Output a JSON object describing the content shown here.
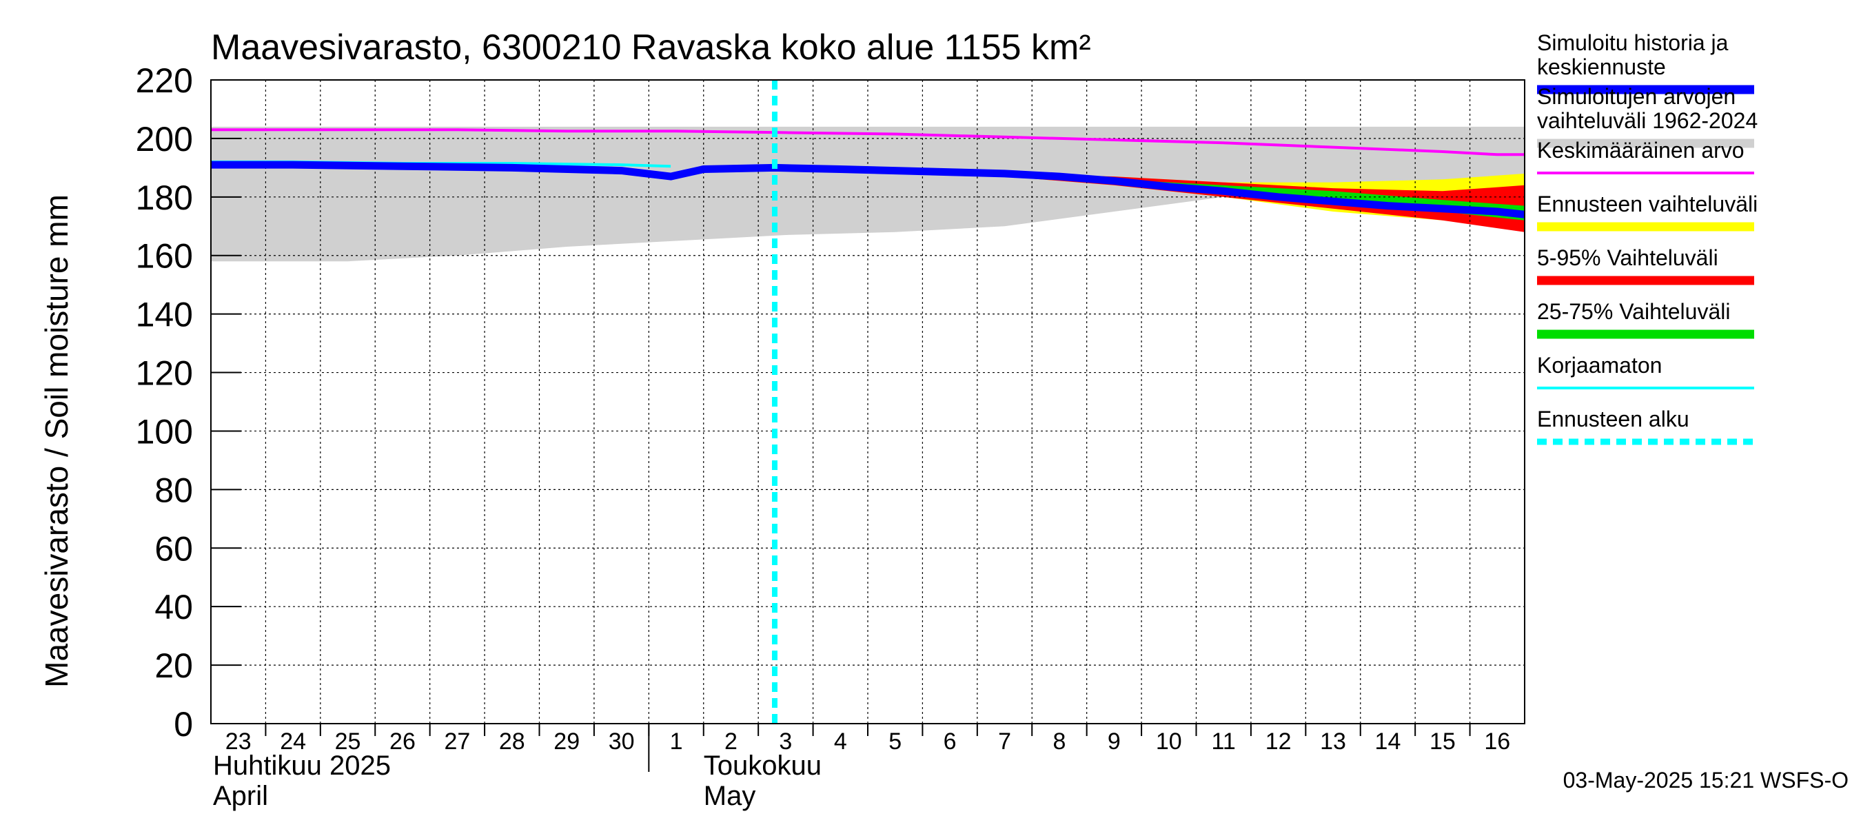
{
  "chart_data": {
    "type": "area",
    "title": "Maavesivarasto, 6300210 Ravaska koko alue 1155 km²",
    "ylabel": "Maavesivarasto / Soil moisture   mm",
    "ylim": [
      0,
      220
    ],
    "yticks": [
      0,
      20,
      40,
      60,
      80,
      100,
      120,
      140,
      160,
      180,
      200,
      220
    ],
    "grid": true,
    "x_day_range": [
      -0.5,
      23.5
    ],
    "x_ticks": [
      {
        "x": 0,
        "label": "23"
      },
      {
        "x": 1,
        "label": "24"
      },
      {
        "x": 2,
        "label": "25"
      },
      {
        "x": 3,
        "label": "26"
      },
      {
        "x": 4,
        "label": "27"
      },
      {
        "x": 5,
        "label": "28"
      },
      {
        "x": 6,
        "label": "29"
      },
      {
        "x": 7,
        "label": "30"
      },
      {
        "x": 8,
        "label": "1"
      },
      {
        "x": 9,
        "label": "2"
      },
      {
        "x": 10,
        "label": "3"
      },
      {
        "x": 11,
        "label": "4"
      },
      {
        "x": 12,
        "label": "5"
      },
      {
        "x": 13,
        "label": "6"
      },
      {
        "x": 14,
        "label": "7"
      },
      {
        "x": 15,
        "label": "8"
      },
      {
        "x": 16,
        "label": "9"
      },
      {
        "x": 17,
        "label": "10"
      },
      {
        "x": 18,
        "label": "11"
      },
      {
        "x": 19,
        "label": "12"
      },
      {
        "x": 20,
        "label": "13"
      },
      {
        "x": 21,
        "label": "14"
      },
      {
        "x": 22,
        "label": "15"
      },
      {
        "x": 23,
        "label": "16"
      }
    ],
    "months": [
      {
        "x": -0.5,
        "line1": "Huhtikuu  2025",
        "line2": "April"
      },
      {
        "x": 8.5,
        "line1": "Toukokuu",
        "line2": "May"
      }
    ],
    "month_divider_x": 7.5,
    "forecast_start_x": 9.8,
    "series": [
      {
        "name": "Simuloitujen arvojen vaihteluväli 1962-2024",
        "kind": "band",
        "color": "#d0d0d0",
        "x": [
          -0.5,
          2,
          4,
          6,
          8,
          10,
          12,
          14,
          16,
          18,
          20,
          22,
          23.5
        ],
        "low": [
          158,
          158,
          160,
          163,
          165,
          167,
          168,
          170,
          175,
          180,
          181,
          181,
          180
        ],
        "high": [
          204,
          204,
          204,
          204,
          204,
          204,
          204,
          204,
          204,
          204,
          204,
          204,
          204
        ]
      },
      {
        "name": "Ennusteen vaihteluväli",
        "kind": "band",
        "color": "#ffff00",
        "x": [
          9.8,
          12,
          14,
          16,
          18,
          20,
          22,
          23.5
        ],
        "low": [
          190,
          189,
          187,
          184,
          180,
          175,
          172,
          169
        ],
        "high": [
          190,
          189,
          188,
          187,
          185,
          185,
          186,
          188
        ]
      },
      {
        "name": "5-95% Vaihteluväli",
        "kind": "band",
        "color": "#ff0000",
        "x": [
          9.8,
          12,
          14,
          16,
          18,
          20,
          22,
          23.5
        ],
        "low": [
          190,
          189,
          187,
          184,
          180,
          176,
          172,
          168
        ],
        "high": [
          190,
          189,
          188,
          187,
          185,
          183,
          182,
          184
        ]
      },
      {
        "name": "25-75% Vaihteluväli",
        "kind": "band",
        "color": "#00dd00",
        "x": [
          9.8,
          12,
          14,
          16,
          18,
          20,
          22,
          23.5
        ],
        "low": [
          190,
          189,
          187,
          185,
          182,
          179,
          175,
          172
        ],
        "high": [
          190,
          189,
          188,
          186,
          184,
          182,
          179,
          177
        ]
      },
      {
        "name": "Keskimääräinen arvo",
        "kind": "line",
        "color": "#ff00ff",
        "width": 4,
        "x": [
          -0.5,
          2,
          4,
          6,
          8,
          10,
          12,
          14,
          16,
          18,
          20,
          22,
          23,
          23.5
        ],
        "y": [
          203,
          203,
          203,
          202.5,
          202.5,
          202,
          201.5,
          200.5,
          199.5,
          198.5,
          197,
          195.5,
          194.5,
          194.5
        ]
      },
      {
        "name": "Korjaamaton",
        "kind": "line",
        "color": "#00ffff",
        "width": 4,
        "x": [
          -0.5,
          1,
          3,
          5,
          7,
          7.9
        ],
        "y": [
          192,
          192,
          191.5,
          191.5,
          191,
          190.5
        ]
      },
      {
        "name": "Simuloitu historia ja keskiennuste",
        "kind": "line",
        "color": "#0000ff",
        "width": 11,
        "x": [
          -0.5,
          1,
          3,
          5,
          7,
          7.9,
          8.5,
          9.8,
          11,
          12,
          13,
          14,
          15,
          16,
          17,
          18,
          19,
          20,
          21,
          22,
          23,
          23.5
        ],
        "y": [
          191,
          191,
          190.5,
          190,
          189,
          187,
          189.5,
          190,
          189.5,
          189,
          188.5,
          188,
          187,
          185.5,
          183.5,
          182,
          180,
          178.5,
          177,
          176,
          175,
          174
        ]
      }
    ]
  },
  "legend": [
    {
      "line1": "Simuloitu historia ja",
      "line2": "keskiennuste",
      "color": "#0000ff",
      "style": "thick"
    },
    {
      "line1": "Simuloitujen arvojen",
      "line2": "vaihteluväli 1962-2024",
      "color": "#d0d0d0",
      "style": "thick"
    },
    {
      "line1": "Keskimääräinen arvo",
      "line2": "",
      "color": "#ff00ff",
      "style": "thin"
    },
    {
      "line1": "Ennusteen vaihteluväli",
      "line2": "",
      "color": "#ffff00",
      "style": "thick"
    },
    {
      "line1": "5-95% Vaihteluväli",
      "line2": "",
      "color": "#ff0000",
      "style": "thick"
    },
    {
      "line1": "25-75% Vaihteluväli",
      "line2": "",
      "color": "#00dd00",
      "style": "thick"
    },
    {
      "line1": "Korjaamaton",
      "line2": "",
      "color": "#00ffff",
      "style": "thin"
    },
    {
      "line1": "Ennusteen alku",
      "line2": "",
      "color": "#00ffff",
      "style": "dashed"
    }
  ],
  "footer": "03-May-2025 15:21 WSFS-O"
}
